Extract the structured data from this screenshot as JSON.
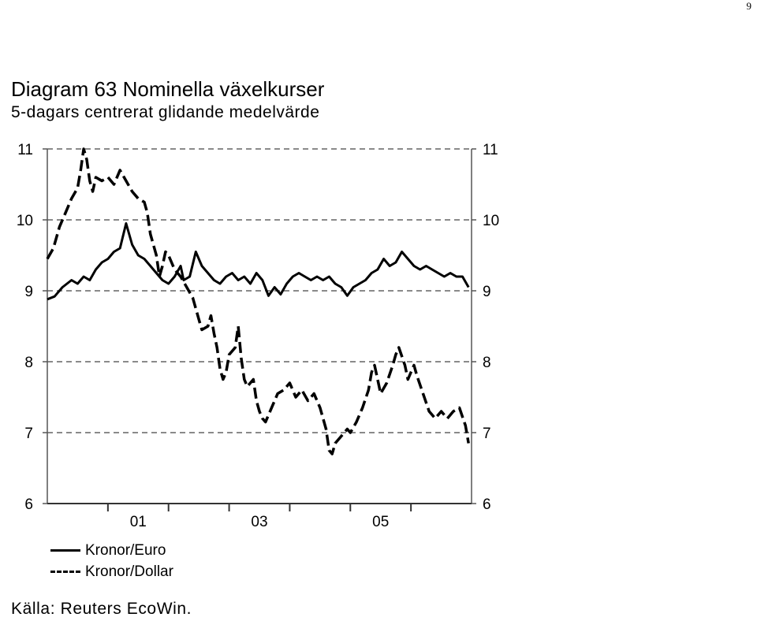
{
  "page_number": "9",
  "figure": {
    "title": "Diagram 63 Nominella växelkurser",
    "subtitle": "5-dagars centrerat glidande medelvärde",
    "source": "Källa: Reuters EcoWin."
  },
  "chart_data": {
    "type": "line",
    "title": "Diagram 63 Nominella växelkurser",
    "subtitle": "5-dagars centrerat glidande medelvärde",
    "xlabel": "",
    "ylabel": "",
    "x_tick_labels": [
      {
        "label": "01",
        "x": 2001.5
      },
      {
        "label": "03",
        "x": 2003.5
      },
      {
        "label": "05",
        "x": 2005.5
      }
    ],
    "x_major_ticks": [
      2001,
      2002,
      2003,
      2004,
      2005,
      2006
    ],
    "xlim": [
      2000.0,
      2007.0
    ],
    "ylim": [
      6,
      11
    ],
    "y_ticks": [
      6,
      7,
      8,
      9,
      10,
      11
    ],
    "y_tick_labels": [
      "6",
      "7",
      "8",
      "9",
      "10",
      "11"
    ],
    "grid": "horizontal dashed",
    "legend_position": "bottom-left",
    "series": [
      {
        "name": "Kronor/Euro",
        "style": "solid",
        "color": "#000000",
        "points": [
          [
            2000.0,
            8.88
          ],
          [
            2000.12,
            8.92
          ],
          [
            2000.25,
            9.05
          ],
          [
            2000.4,
            9.15
          ],
          [
            2000.5,
            9.1
          ],
          [
            2000.6,
            9.2
          ],
          [
            2000.7,
            9.15
          ],
          [
            2000.8,
            9.3
          ],
          [
            2000.9,
            9.4
          ],
          [
            2001.0,
            9.45
          ],
          [
            2001.1,
            9.55
          ],
          [
            2001.2,
            9.6
          ],
          [
            2001.3,
            9.95
          ],
          [
            2001.4,
            9.65
          ],
          [
            2001.5,
            9.5
          ],
          [
            2001.6,
            9.45
          ],
          [
            2001.7,
            9.35
          ],
          [
            2001.8,
            9.25
          ],
          [
            2001.9,
            9.15
          ],
          [
            2002.0,
            9.1
          ],
          [
            2002.1,
            9.2
          ],
          [
            2002.2,
            9.35
          ],
          [
            2002.25,
            9.15
          ],
          [
            2002.35,
            9.2
          ],
          [
            2002.45,
            9.55
          ],
          [
            2002.55,
            9.35
          ],
          [
            2002.65,
            9.25
          ],
          [
            2002.75,
            9.15
          ],
          [
            2002.85,
            9.1
          ],
          [
            2002.95,
            9.2
          ],
          [
            2003.05,
            9.25
          ],
          [
            2003.15,
            9.15
          ],
          [
            2003.25,
            9.2
          ],
          [
            2003.35,
            9.1
          ],
          [
            2003.45,
            9.25
          ],
          [
            2003.55,
            9.15
          ],
          [
            2003.65,
            8.93
          ],
          [
            2003.75,
            9.05
          ],
          [
            2003.85,
            8.95
          ],
          [
            2003.95,
            9.1
          ],
          [
            2004.05,
            9.2
          ],
          [
            2004.15,
            9.25
          ],
          [
            2004.25,
            9.2
          ],
          [
            2004.35,
            9.15
          ],
          [
            2004.45,
            9.2
          ],
          [
            2004.55,
            9.15
          ],
          [
            2004.65,
            9.2
          ],
          [
            2004.75,
            9.1
          ],
          [
            2004.85,
            9.05
          ],
          [
            2004.95,
            8.93
          ],
          [
            2005.05,
            9.05
          ],
          [
            2005.15,
            9.1
          ],
          [
            2005.25,
            9.15
          ],
          [
            2005.35,
            9.25
          ],
          [
            2005.45,
            9.3
          ],
          [
            2005.55,
            9.45
          ],
          [
            2005.65,
            9.35
          ],
          [
            2005.75,
            9.4
          ],
          [
            2005.85,
            9.55
          ],
          [
            2005.95,
            9.45
          ],
          [
            2006.05,
            9.35
          ],
          [
            2006.15,
            9.3
          ],
          [
            2006.25,
            9.35
          ],
          [
            2006.35,
            9.3
          ],
          [
            2006.45,
            9.25
          ],
          [
            2006.55,
            9.2
          ],
          [
            2006.65,
            9.25
          ],
          [
            2006.75,
            9.2
          ],
          [
            2006.85,
            9.2
          ],
          [
            2006.95,
            9.05
          ]
        ]
      },
      {
        "name": "Kronor/Dollar",
        "style": "dashed",
        "color": "#000000",
        "points": [
          [
            2000.0,
            9.45
          ],
          [
            2000.1,
            9.6
          ],
          [
            2000.2,
            9.9
          ],
          [
            2000.3,
            10.1
          ],
          [
            2000.4,
            10.3
          ],
          [
            2000.5,
            10.45
          ],
          [
            2000.55,
            10.7
          ],
          [
            2000.6,
            11.0
          ],
          [
            2000.65,
            10.85
          ],
          [
            2000.7,
            10.55
          ],
          [
            2000.75,
            10.4
          ],
          [
            2000.8,
            10.6
          ],
          [
            2000.9,
            10.55
          ],
          [
            2001.0,
            10.6
          ],
          [
            2001.1,
            10.5
          ],
          [
            2001.2,
            10.7
          ],
          [
            2001.3,
            10.55
          ],
          [
            2001.4,
            10.4
          ],
          [
            2001.5,
            10.3
          ],
          [
            2001.6,
            10.25
          ],
          [
            2001.65,
            10.1
          ],
          [
            2001.7,
            9.8
          ],
          [
            2001.8,
            9.5
          ],
          [
            2001.85,
            9.2
          ],
          [
            2001.9,
            9.35
          ],
          [
            2001.95,
            9.55
          ],
          [
            2002.0,
            9.5
          ],
          [
            2002.1,
            9.3
          ],
          [
            2002.2,
            9.2
          ],
          [
            2002.3,
            9.05
          ],
          [
            2002.4,
            8.9
          ],
          [
            2002.5,
            8.6
          ],
          [
            2002.55,
            8.45
          ],
          [
            2002.65,
            8.5
          ],
          [
            2002.7,
            8.65
          ],
          [
            2002.75,
            8.4
          ],
          [
            2002.8,
            8.2
          ],
          [
            2002.85,
            7.9
          ],
          [
            2002.9,
            7.75
          ],
          [
            2002.95,
            7.85
          ],
          [
            2003.0,
            8.1
          ],
          [
            2003.1,
            8.2
          ],
          [
            2003.15,
            8.5
          ],
          [
            2003.2,
            8.05
          ],
          [
            2003.25,
            7.75
          ],
          [
            2003.3,
            7.65
          ],
          [
            2003.4,
            7.75
          ],
          [
            2003.45,
            7.45
          ],
          [
            2003.5,
            7.3
          ],
          [
            2003.55,
            7.2
          ],
          [
            2003.6,
            7.15
          ],
          [
            2003.7,
            7.35
          ],
          [
            2003.8,
            7.55
          ],
          [
            2003.9,
            7.6
          ],
          [
            2004.0,
            7.7
          ],
          [
            2004.1,
            7.5
          ],
          [
            2004.2,
            7.6
          ],
          [
            2004.3,
            7.45
          ],
          [
            2004.4,
            7.55
          ],
          [
            2004.5,
            7.35
          ],
          [
            2004.6,
            7.05
          ],
          [
            2004.65,
            6.75
          ],
          [
            2004.7,
            6.7
          ],
          [
            2004.75,
            6.85
          ],
          [
            2004.85,
            6.95
          ],
          [
            2004.95,
            7.05
          ],
          [
            2005.0,
            7.0
          ],
          [
            2005.1,
            7.15
          ],
          [
            2005.2,
            7.35
          ],
          [
            2005.3,
            7.6
          ],
          [
            2005.35,
            7.85
          ],
          [
            2005.4,
            7.95
          ],
          [
            2005.45,
            7.75
          ],
          [
            2005.5,
            7.55
          ],
          [
            2005.6,
            7.7
          ],
          [
            2005.7,
            7.95
          ],
          [
            2005.75,
            8.1
          ],
          [
            2005.8,
            8.2
          ],
          [
            2005.9,
            7.95
          ],
          [
            2005.95,
            7.75
          ],
          [
            2006.0,
            7.85
          ],
          [
            2006.05,
            7.95
          ],
          [
            2006.1,
            7.8
          ],
          [
            2006.2,
            7.55
          ],
          [
            2006.3,
            7.3
          ],
          [
            2006.4,
            7.2
          ],
          [
            2006.5,
            7.3
          ],
          [
            2006.6,
            7.2
          ],
          [
            2006.7,
            7.3
          ],
          [
            2006.8,
            7.35
          ],
          [
            2006.9,
            7.1
          ],
          [
            2006.95,
            6.85
          ]
        ]
      }
    ]
  }
}
